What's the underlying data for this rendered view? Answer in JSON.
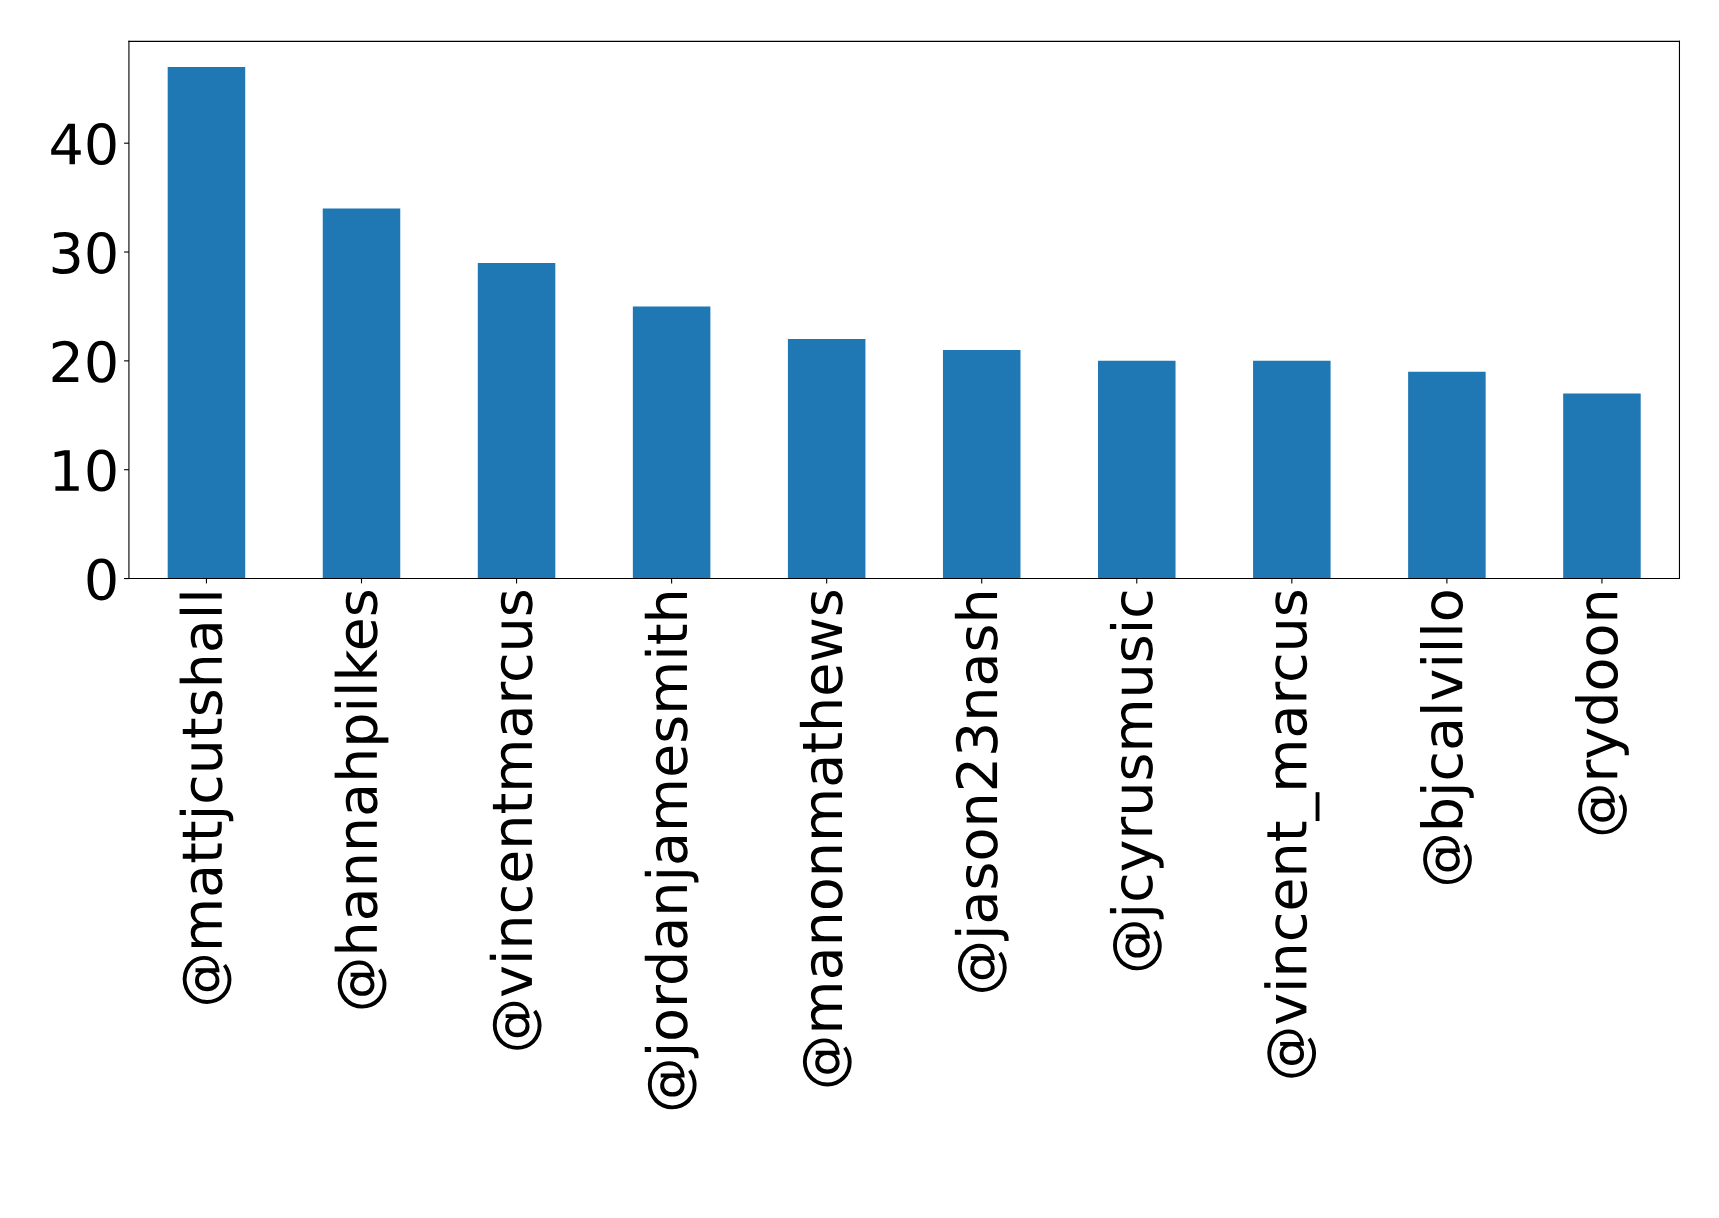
{
  "chart_data": {
    "type": "bar",
    "categories": [
      "@mattjcutshall",
      "@hannahpilkes",
      "@vincentmarcus",
      "@jordanjamesmith",
      "@manonmathews",
      "@jason23nash",
      "@jcyrusmusic",
      "@vincent_marcus",
      "@bjcalvillo",
      "@rydoon"
    ],
    "values": [
      47,
      34,
      29,
      25,
      22,
      21,
      20,
      20,
      19,
      17
    ],
    "color": "#1f77b4",
    "ylim": [
      0,
      49.35
    ],
    "yticks": [
      0,
      10,
      20,
      30,
      40
    ],
    "grid": false,
    "legend": false
  }
}
